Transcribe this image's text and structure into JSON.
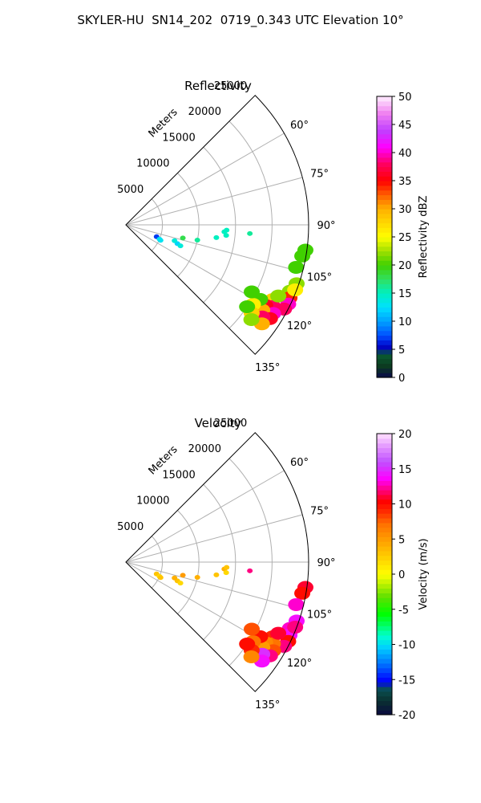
{
  "figure": {
    "title": "SKYLER-HU  SN14_202  0719_0.343 UTC Elevation 10°"
  },
  "chart_data": [
    {
      "type": "heatmap",
      "projection": "polar-sector",
      "title": "Reflectivity",
      "radial_label": "Meters",
      "angle_range_deg": [
        45,
        135
      ],
      "angle_ticks": [
        60,
        75,
        90,
        105,
        120,
        135
      ],
      "angle_tick_labels": [
        "60°",
        "75°",
        "90°",
        "105°",
        "120°",
        "135°"
      ],
      "radial_range": [
        0,
        25000
      ],
      "radial_ticks": [
        5000,
        10000,
        15000,
        20000,
        25000
      ],
      "radial_tick_labels": [
        "5000",
        "10000",
        "15000",
        "20000",
        "25000"
      ],
      "grid": true,
      "colorbar": {
        "label": "Reflectivity dBZ",
        "range": [
          0,
          50
        ],
        "ticks": [
          0,
          5,
          10,
          15,
          20,
          25,
          30,
          35,
          40,
          45,
          50
        ],
        "tick_labels": [
          "0",
          "5",
          "10",
          "15",
          "20",
          "25",
          "30",
          "35",
          "40",
          "45",
          "50"
        ]
      },
      "echoes": [
        {
          "angle": 112,
          "range": 24200,
          "value": 22
        },
        {
          "angle": 114,
          "range": 24500,
          "value": 34
        },
        {
          "angle": 116,
          "range": 24700,
          "value": 40
        },
        {
          "angle": 118,
          "range": 24500,
          "value": 38
        },
        {
          "angle": 117,
          "range": 22500,
          "value": 28
        },
        {
          "angle": 119,
          "range": 23000,
          "value": 38
        },
        {
          "angle": 115,
          "range": 23000,
          "value": 22
        },
        {
          "angle": 120,
          "range": 22000,
          "value": 36
        },
        {
          "angle": 121,
          "range": 23500,
          "value": 40
        },
        {
          "angle": 122,
          "range": 22000,
          "value": 30
        },
        {
          "angle": 119,
          "range": 21000,
          "value": 20
        },
        {
          "angle": 123,
          "range": 23500,
          "value": 36
        },
        {
          "angle": 124,
          "range": 22500,
          "value": 38
        },
        {
          "angle": 122,
          "range": 20500,
          "value": 26
        },
        {
          "angle": 125,
          "range": 21000,
          "value": 28
        },
        {
          "angle": 124,
          "range": 20000,
          "value": 20
        },
        {
          "angle": 126,
          "range": 23000,
          "value": 30
        },
        {
          "angle": 127,
          "range": 21500,
          "value": 22
        },
        {
          "angle": 109,
          "range": 24700,
          "value": 22
        },
        {
          "angle": 111,
          "range": 24800,
          "value": 26
        },
        {
          "angle": 98,
          "range": 24800,
          "value": 20
        },
        {
          "angle": 100,
          "range": 24500,
          "value": 20
        },
        {
          "angle": 104,
          "range": 24000,
          "value": 20
        },
        {
          "angle": 118,
          "range": 19500,
          "value": 20
        },
        {
          "angle": 94,
          "range": 13500,
          "value": 15
        },
        {
          "angle": 93,
          "range": 13800,
          "value": 15
        },
        {
          "angle": 96,
          "range": 13800,
          "value": 15
        },
        {
          "angle": 94,
          "range": 17000,
          "value": 16
        },
        {
          "angle": 98,
          "range": 12500,
          "value": 15
        },
        {
          "angle": 110,
          "range": 7500,
          "value": 12
        },
        {
          "angle": 111,
          "range": 8000,
          "value": 14
        },
        {
          "angle": 108,
          "range": 7000,
          "value": 14
        },
        {
          "angle": 103,
          "range": 8000,
          "value": 18
        },
        {
          "angle": 102,
          "range": 10000,
          "value": 16
        },
        {
          "angle": 111,
          "range": 4500,
          "value": 7
        },
        {
          "angle": 113,
          "range": 5000,
          "value": 13
        },
        {
          "angle": 114,
          "range": 5200,
          "value": 13
        }
      ]
    },
    {
      "type": "heatmap",
      "projection": "polar-sector",
      "title": "Velocity",
      "radial_label": "Meters",
      "angle_range_deg": [
        45,
        135
      ],
      "angle_ticks": [
        60,
        75,
        90,
        105,
        120,
        135
      ],
      "angle_tick_labels": [
        "60°",
        "75°",
        "90°",
        "105°",
        "120°",
        "135°"
      ],
      "radial_range": [
        0,
        25000
      ],
      "radial_ticks": [
        5000,
        10000,
        15000,
        20000,
        25000
      ],
      "radial_tick_labels": [
        "5000",
        "10000",
        "15000",
        "20000",
        "25000"
      ],
      "grid": true,
      "colorbar": {
        "label": "Velocity (m/s)",
        "range": [
          -20,
          20
        ],
        "ticks": [
          -20,
          -15,
          -10,
          -5,
          0,
          5,
          10,
          15,
          20
        ],
        "tick_labels": [
          "-20",
          "-15",
          "-10",
          "-5",
          "0",
          "5",
          "10",
          "15",
          "20"
        ]
      },
      "echoes": [
        {
          "angle": 112,
          "range": 24200,
          "value": 13
        },
        {
          "angle": 114,
          "range": 24500,
          "value": 14
        },
        {
          "angle": 116,
          "range": 24700,
          "value": 10
        },
        {
          "angle": 118,
          "range": 24500,
          "value": 12
        },
        {
          "angle": 117,
          "range": 22500,
          "value": 9
        },
        {
          "angle": 119,
          "range": 23000,
          "value": 7
        },
        {
          "angle": 115,
          "range": 23000,
          "value": 11
        },
        {
          "angle": 120,
          "range": 22000,
          "value": 6
        },
        {
          "angle": 121,
          "range": 23500,
          "value": 8
        },
        {
          "angle": 122,
          "range": 22000,
          "value": 5
        },
        {
          "angle": 119,
          "range": 21000,
          "value": 10
        },
        {
          "angle": 123,
          "range": 23500,
          "value": 12
        },
        {
          "angle": 124,
          "range": 22500,
          "value": 15
        },
        {
          "angle": 122,
          "range": 20500,
          "value": 7
        },
        {
          "angle": 125,
          "range": 21000,
          "value": 9
        },
        {
          "angle": 124,
          "range": 20000,
          "value": 10
        },
        {
          "angle": 126,
          "range": 23000,
          "value": 14
        },
        {
          "angle": 127,
          "range": 21500,
          "value": 6
        },
        {
          "angle": 109,
          "range": 24700,
          "value": 14
        },
        {
          "angle": 111,
          "range": 24800,
          "value": 12
        },
        {
          "angle": 98,
          "range": 24800,
          "value": 11
        },
        {
          "angle": 100,
          "range": 24500,
          "value": 10
        },
        {
          "angle": 104,
          "range": 24000,
          "value": 13
        },
        {
          "angle": 118,
          "range": 19500,
          "value": 8
        },
        {
          "angle": 94,
          "range": 13500,
          "value": 4
        },
        {
          "angle": 93,
          "range": 13800,
          "value": 3
        },
        {
          "angle": 96,
          "range": 13800,
          "value": 2
        },
        {
          "angle": 94,
          "range": 17000,
          "value": 12
        },
        {
          "angle": 98,
          "range": 12500,
          "value": 3
        },
        {
          "angle": 110,
          "range": 7500,
          "value": 3
        },
        {
          "angle": 111,
          "range": 8000,
          "value": 2
        },
        {
          "angle": 108,
          "range": 7000,
          "value": 4
        },
        {
          "angle": 103,
          "range": 8000,
          "value": 5
        },
        {
          "angle": 102,
          "range": 10000,
          "value": 4
        },
        {
          "angle": 111,
          "range": 4500,
          "value": 3
        },
        {
          "angle": 113,
          "range": 5000,
          "value": 2
        },
        {
          "angle": 114,
          "range": 5200,
          "value": 3
        }
      ]
    }
  ]
}
